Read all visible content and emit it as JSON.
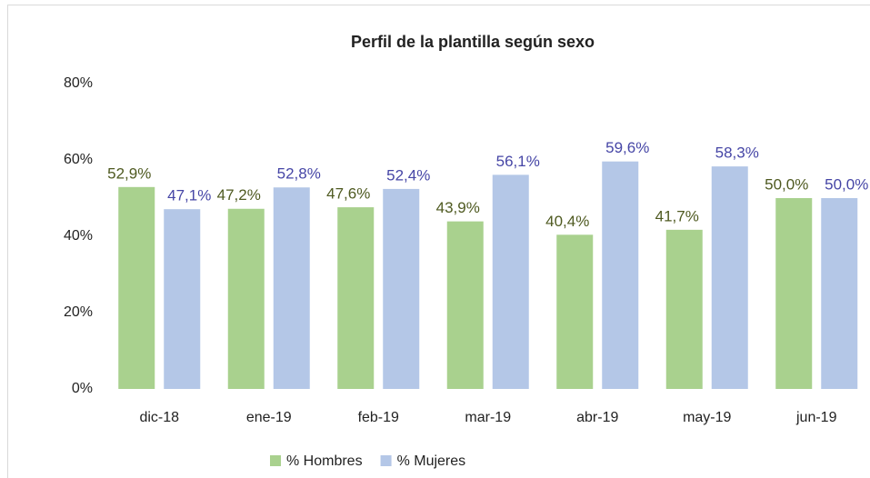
{
  "chart_data": {
    "type": "bar",
    "title": "Perfil de la plantilla según sexo",
    "categories": [
      "dic-18",
      "ene-19",
      "feb-19",
      "mar-19",
      "abr-19",
      "may-19",
      "jun-19"
    ],
    "series": [
      {
        "name": "% Hombres",
        "color": "#a9d18e",
        "label_color": "#4f5a21",
        "values": [
          52.9,
          47.2,
          47.6,
          43.9,
          40.4,
          41.7,
          50.0
        ],
        "value_labels": [
          "52,9%",
          "47,2%",
          "47,6%",
          "43,9%",
          "40,4%",
          "41,7%",
          "50,0%"
        ]
      },
      {
        "name": "% Mujeres",
        "color": "#b4c7e7",
        "label_color": "#4646a6",
        "values": [
          47.1,
          52.8,
          52.4,
          56.1,
          59.6,
          58.3,
          50.0
        ],
        "value_labels": [
          "47,1%",
          "52,8%",
          "52,4%",
          "56,1%",
          "59,6%",
          "58,3%",
          "50,0%"
        ]
      }
    ],
    "ylim": [
      0,
      80
    ],
    "yticks": [
      {
        "value": 0,
        "label": "0%"
      },
      {
        "value": 20,
        "label": "20%"
      },
      {
        "value": 40,
        "label": "40%"
      },
      {
        "value": 60,
        "label": "60%"
      },
      {
        "value": 80,
        "label": "80%"
      }
    ],
    "grid": false,
    "legend": "bottom"
  }
}
